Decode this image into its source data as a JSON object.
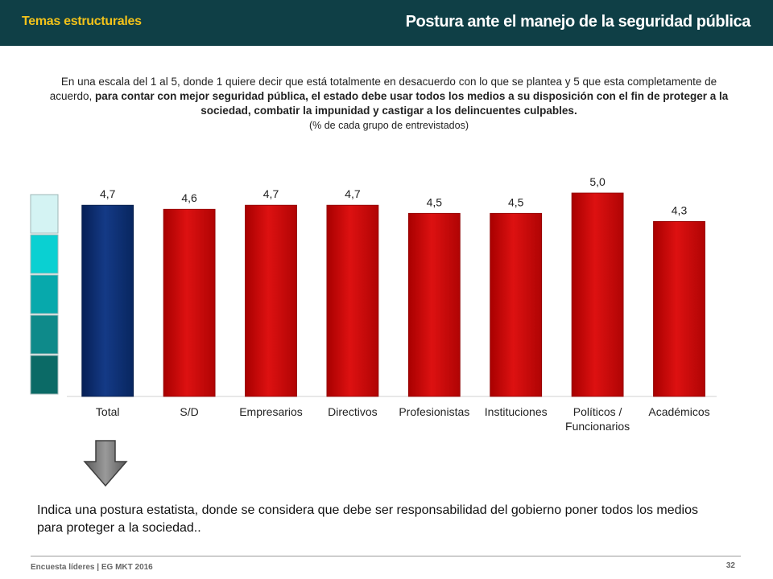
{
  "header": {
    "section": "Temas estructurales",
    "title": "Postura ante el manejo de la seguridad pública"
  },
  "question": {
    "part1": "En una escala del 1 al 5, donde 1 quiere decir que está totalmente en desacuerdo con lo que se plantea y 5 que esta completamente de acuerdo, ",
    "part2_bold": "para contar con mejor seguridad pública, el estado debe usar todos los medios a su disposición con el fin de proteger a la sociedad, combatir la impunidad y castigar a los delincuentes culpables.",
    "note": "(% de cada grupo de entrevistados)"
  },
  "chart_data": {
    "type": "bar",
    "categories": [
      "Total",
      "S/D",
      "Empresarios",
      "Directivos",
      "Profesionistas",
      "Instituciones",
      "Políticos / Funcionarios",
      "Académicos"
    ],
    "values": [
      4.7,
      4.6,
      4.7,
      4.7,
      4.5,
      4.5,
      5.0,
      4.3
    ],
    "value_labels": [
      "4,7",
      "4,6",
      "4,7",
      "4,7",
      "4,5",
      "4,5",
      "5,0",
      "4,3"
    ],
    "ylim": [
      0,
      5
    ],
    "grid": false,
    "colors": {
      "total": "#0b2f73",
      "groups": "#cc0a0a"
    }
  },
  "scale_legend_colors": [
    "#d4f3f3",
    "#0ad0d2",
    "#07a9ac",
    "#0e8a8a",
    "#0b6a66"
  ],
  "conclusion": "Indica una postura estatista, donde se considera que debe ser responsabilidad del gobierno poner todos los medios para proteger a la sociedad..",
  "footer": {
    "source": "Encuesta líderes | EG MKT 2016",
    "page": "32"
  }
}
